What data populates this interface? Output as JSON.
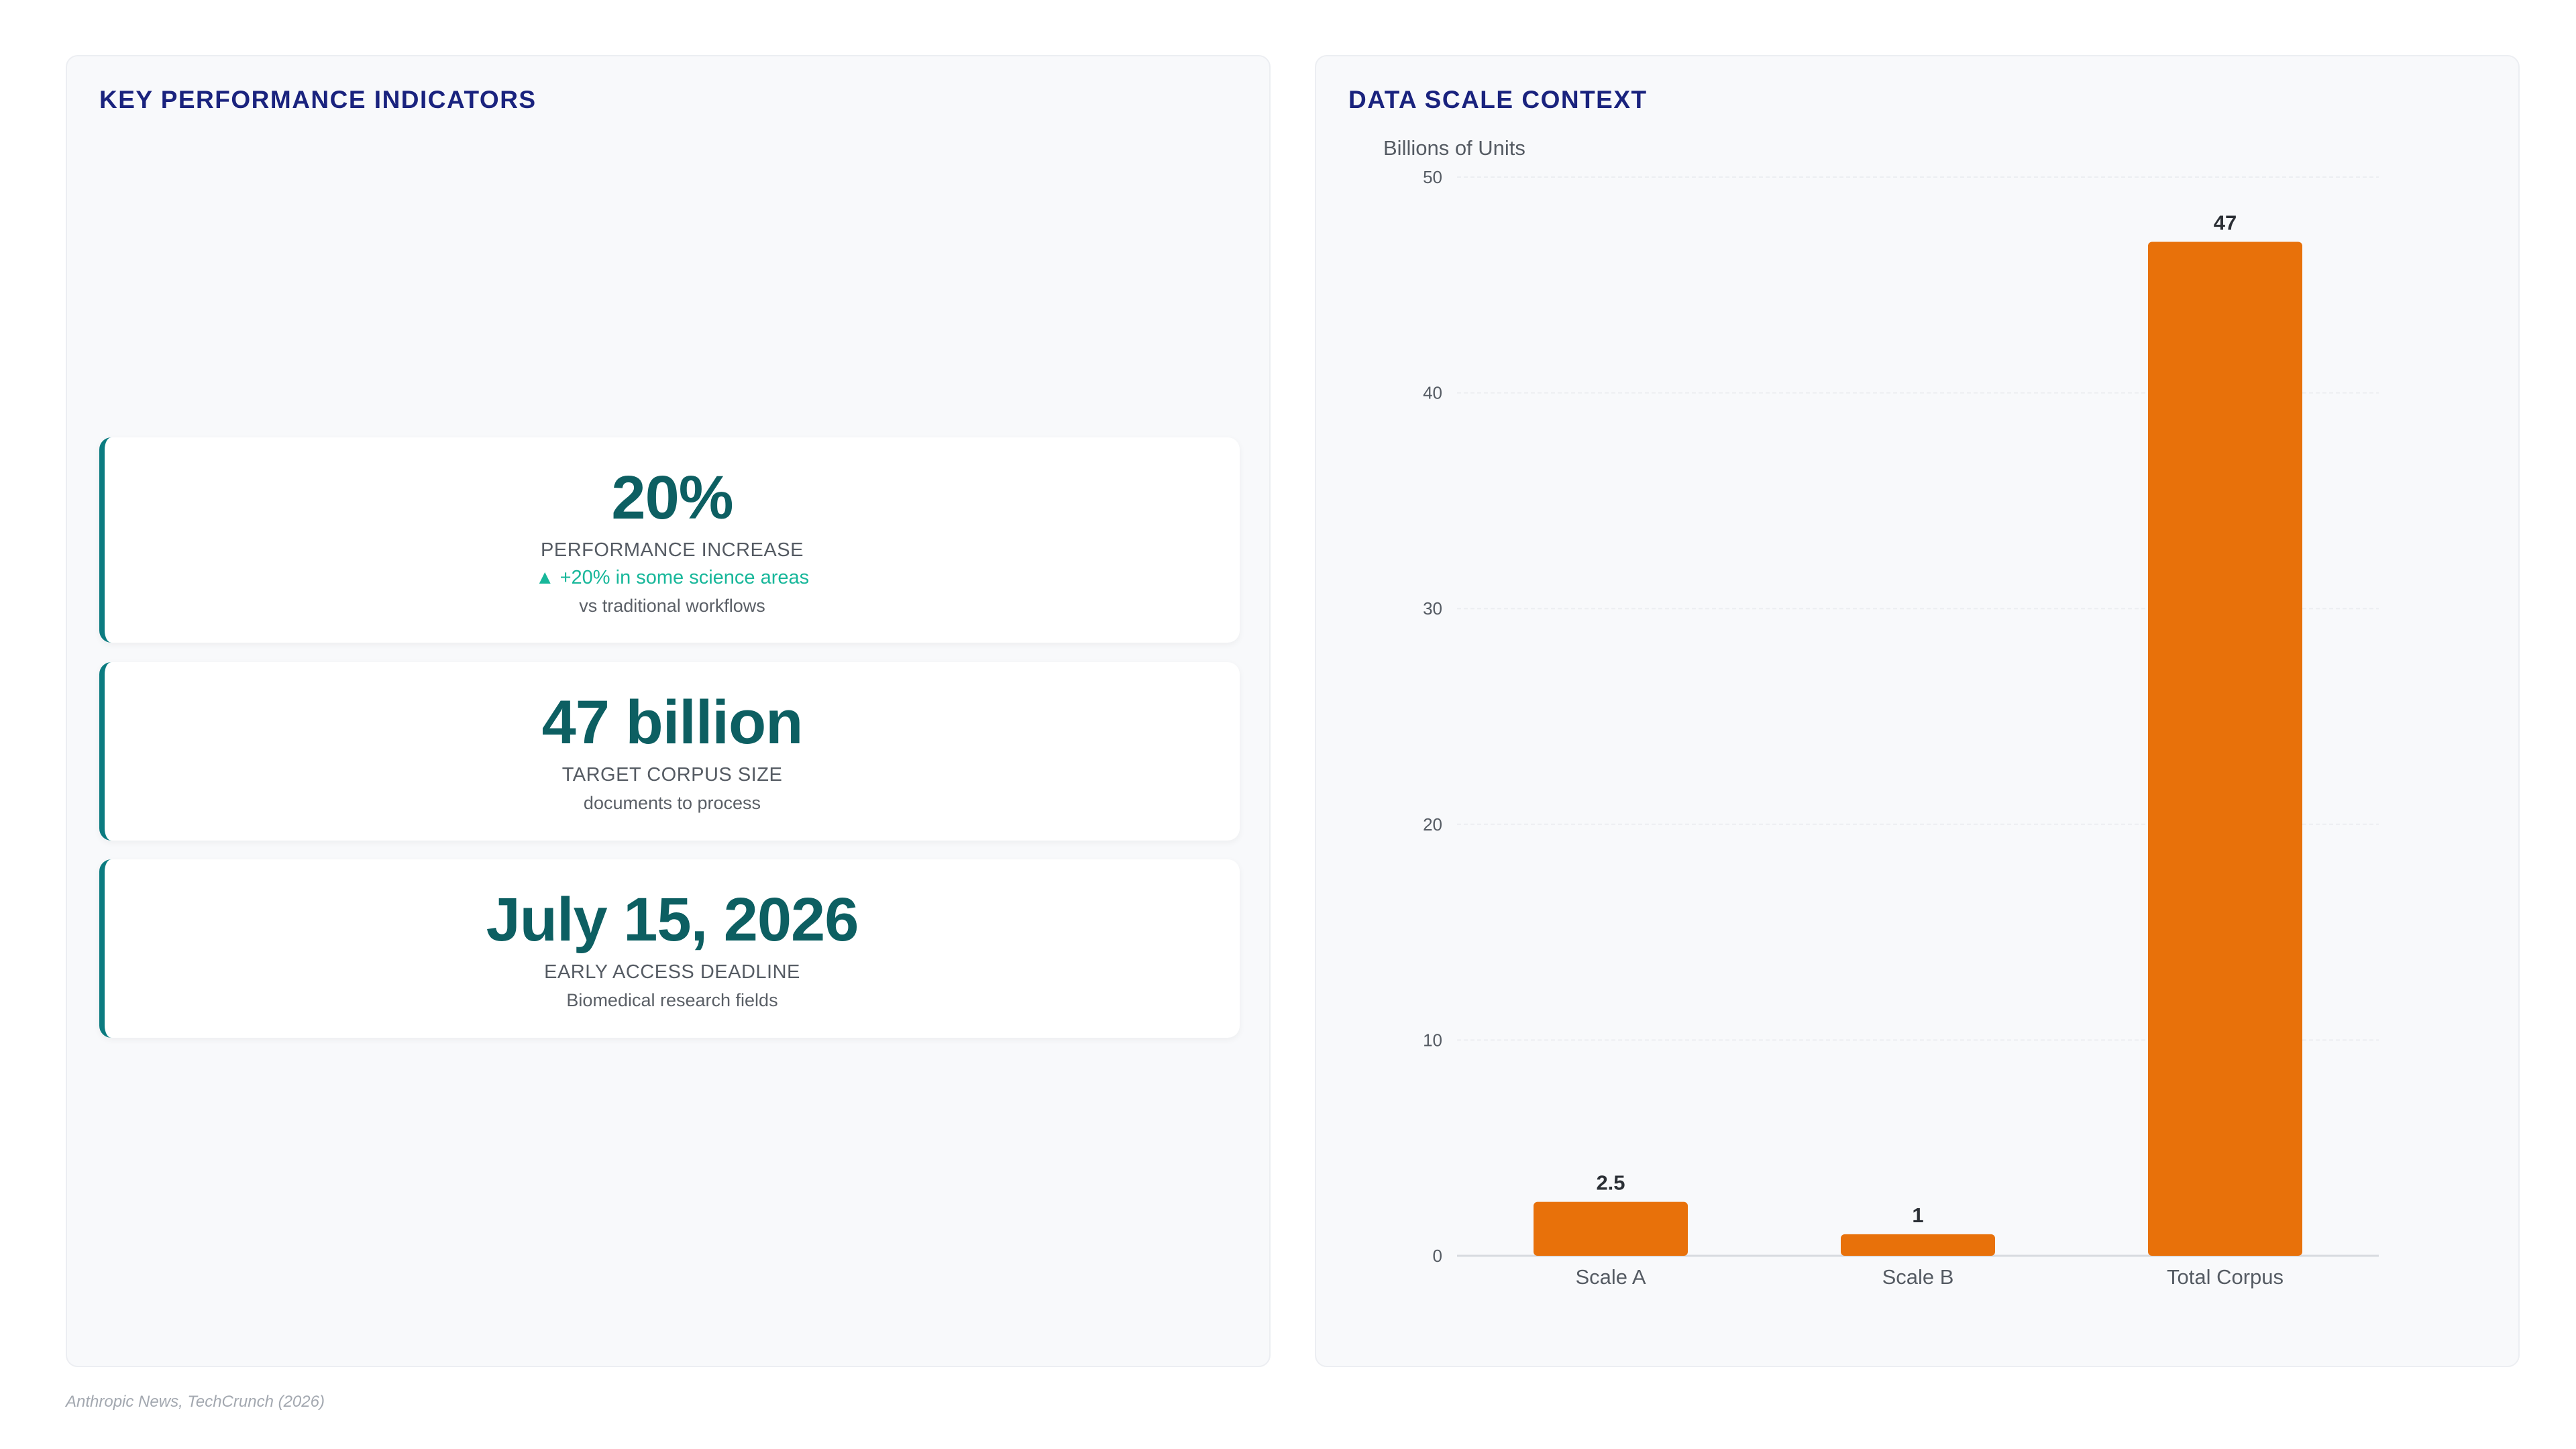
{
  "kpi_panel": {
    "title": "KEY PERFORMANCE INDICATORS",
    "cards": [
      {
        "value": "20%",
        "label": "PERFORMANCE INCREASE",
        "delta": "▲ +20% in some science areas",
        "note": "vs traditional workflows"
      },
      {
        "value": "47 billion",
        "label": "TARGET CORPUS SIZE",
        "note": "documents to process"
      },
      {
        "value": "July 15, 2026",
        "label": "EARLY ACCESS DEADLINE",
        "note": "Biomedical research fields"
      }
    ]
  },
  "chart_panel": {
    "title": "DATA SCALE CONTEXT"
  },
  "chart_data": {
    "type": "bar",
    "categories": [
      "Scale A",
      "Scale B",
      "Total Corpus"
    ],
    "values": [
      2.5,
      1,
      47
    ],
    "value_labels": [
      "2.5",
      "1",
      "47"
    ],
    "ylabel": "Billions of Units",
    "ylim": [
      0,
      50
    ],
    "yticks": [
      0,
      10,
      20,
      30,
      40,
      50
    ],
    "grid": true,
    "bar_color": "#e8710a"
  },
  "colors": {
    "accent": "#0b7b80",
    "kpi_value": "#0d5f62",
    "title": "#1a237e",
    "delta": "#17b79a"
  },
  "footer": {
    "source": "Anthropic News, TechCrunch (2026)"
  }
}
